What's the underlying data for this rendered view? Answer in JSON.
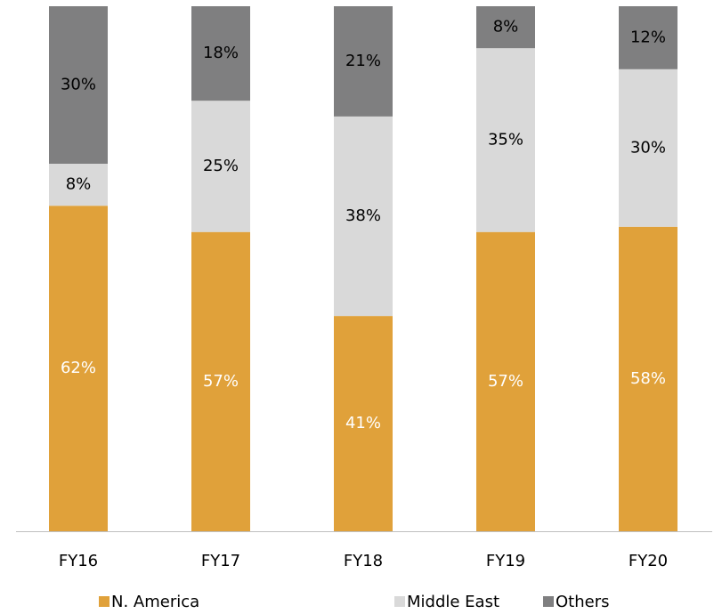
{
  "chart_data": {
    "type": "stacked_bar",
    "categories": [
      "FY16",
      "FY17",
      "FY18",
      "FY19",
      "FY20"
    ],
    "series": [
      {
        "name": "N. America",
        "color": "#E0A13A",
        "values": [
          62,
          57,
          41,
          57,
          58
        ],
        "value_labels": [
          "62%",
          "57%",
          "41%",
          "57%",
          "58%"
        ]
      },
      {
        "name": "Middle East",
        "color": "#D9D9D9",
        "values": [
          8,
          25,
          38,
          35,
          30
        ],
        "value_labels": [
          "8%",
          "25%",
          "38%",
          "35%",
          "30%"
        ]
      },
      {
        "name": "Others",
        "color": "#7F7F80",
        "values": [
          30,
          18,
          21,
          8,
          12
        ],
        "value_labels": [
          "30%",
          "18%",
          "21%",
          "8%",
          "12%"
        ]
      }
    ],
    "ylim": [
      0,
      100
    ],
    "legend": "bottom"
  }
}
